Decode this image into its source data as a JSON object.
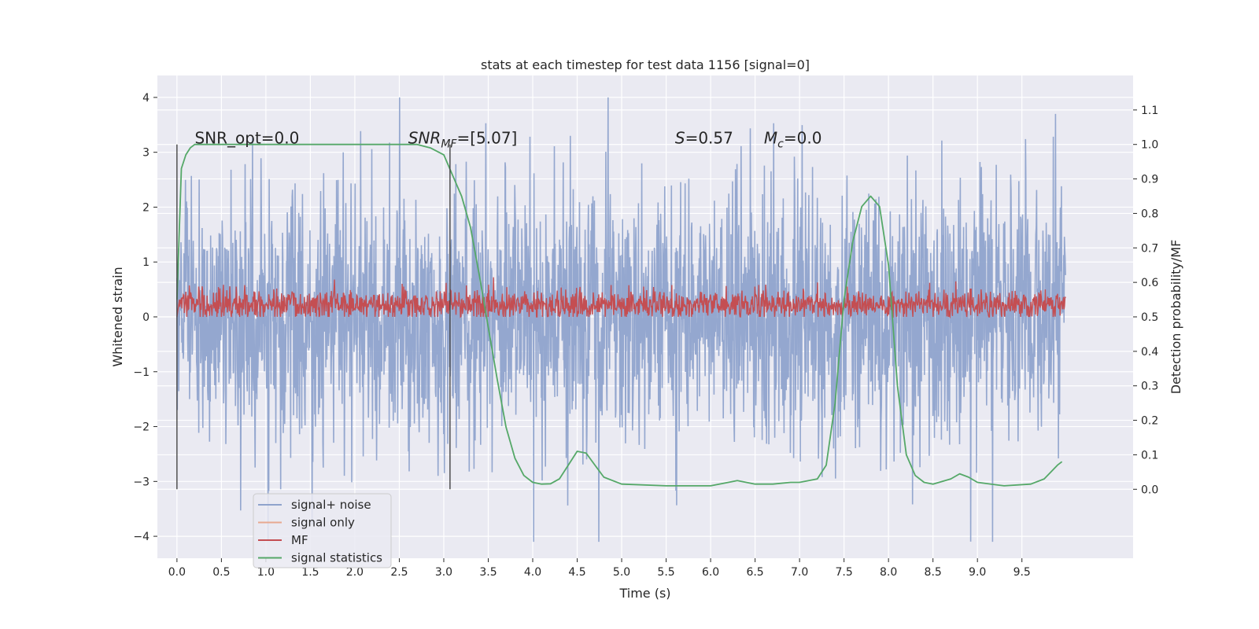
{
  "chart_data": {
    "type": "line",
    "title": "stats at each timestep for test data 1156 [signal=0]",
    "xlabel": "Time (s)",
    "ylabel": "Whitened strain",
    "y2label": "Detection probability/MF",
    "xlim": [
      -0.22,
      10.75
    ],
    "ylim": [
      -4.4,
      4.4
    ],
    "y2lim": [
      -0.2,
      1.2
    ],
    "x_ticks": [
      "0.0",
      "0.5",
      "1.0",
      "1.5",
      "2.0",
      "2.5",
      "3.0",
      "3.5",
      "4.0",
      "4.5",
      "5.0",
      "5.5",
      "6.0",
      "6.5",
      "7.0",
      "7.5",
      "8.0",
      "8.5",
      "9.0",
      "9.5"
    ],
    "x_tick_values": [
      0,
      0.5,
      1,
      1.5,
      2,
      2.5,
      3,
      3.5,
      4,
      4.5,
      5,
      5.5,
      6,
      6.5,
      7,
      7.5,
      8,
      8.5,
      9,
      9.5
    ],
    "y_ticks": [
      "4",
      "3",
      "2",
      "1",
      "0",
      "−1",
      "−2",
      "−3",
      "−4"
    ],
    "y_tick_values": [
      4,
      3,
      2,
      1,
      0,
      -1,
      -2,
      -3,
      -4
    ],
    "y2_ticks": [
      "1.1",
      "1.0",
      "0.9",
      "0.8",
      "0.7",
      "0.6",
      "0.5",
      "0.4",
      "0.3",
      "0.2",
      "0.1",
      "0.0"
    ],
    "y2_tick_values": [
      1.1,
      1.0,
      0.9,
      0.8,
      0.7,
      0.6,
      0.5,
      0.4,
      0.3,
      0.2,
      0.1,
      0.0
    ],
    "grid": true,
    "legend_position": "lower-left",
    "vlines": [
      0.0,
      3.07
    ],
    "annotations": [
      {
        "text": "SNR_opt=0.0",
        "x": 0.2,
        "y2": 1.0
      },
      {
        "text": "SNR",
        "sub": "MF",
        "rest": "=[5.07]",
        "x": 2.6,
        "y2": 1.0,
        "italic": true
      },
      {
        "text": "S",
        "rest": "=0.57",
        "x": 5.6,
        "y2": 1.0,
        "italic": true
      },
      {
        "text": "M",
        "sub": "c",
        "rest": "=0.0",
        "x": 6.6,
        "y2": 1.0,
        "italic": true
      }
    ],
    "series": [
      {
        "name": "signal+ noise",
        "color": "#8fa3cc",
        "kind": "noise",
        "x_range": [
          0,
          9.99
        ],
        "std": 1.2,
        "max": 4.0,
        "min": -4.1
      },
      {
        "name": "signal only",
        "color": "#e8a990",
        "kind": "flat",
        "values": []
      },
      {
        "name": "MF",
        "color": "#c44e52",
        "kind": "mf",
        "x_range": [
          0,
          9.99
        ],
        "y2_base": 0.535,
        "y2_min": 0.5,
        "y2_max": 0.64
      },
      {
        "name": "signal statistics",
        "color": "#55a868",
        "axis": "right",
        "x": [
          0.0,
          0.05,
          0.1,
          0.15,
          0.2,
          0.3,
          0.5,
          1.0,
          1.5,
          2.0,
          2.5,
          2.7,
          2.85,
          3.0,
          3.1,
          3.2,
          3.3,
          3.4,
          3.5,
          3.6,
          3.7,
          3.8,
          3.9,
          4.0,
          4.1,
          4.2,
          4.3,
          4.4,
          4.5,
          4.6,
          4.7,
          4.8,
          5.0,
          5.5,
          6.0,
          6.2,
          6.3,
          6.5,
          6.7,
          6.9,
          7.0,
          7.2,
          7.3,
          7.4,
          7.5,
          7.6,
          7.7,
          7.8,
          7.9,
          8.0,
          8.1,
          8.2,
          8.3,
          8.4,
          8.5,
          8.7,
          8.8,
          8.9,
          9.0,
          9.3,
          9.6,
          9.75,
          9.9,
          9.95
        ],
        "y": [
          0.55,
          0.93,
          0.97,
          0.99,
          1.0,
          1.0,
          1.0,
          1.0,
          1.0,
          1.0,
          1.0,
          1.0,
          0.99,
          0.97,
          0.91,
          0.85,
          0.76,
          0.62,
          0.47,
          0.32,
          0.18,
          0.09,
          0.04,
          0.02,
          0.015,
          0.016,
          0.03,
          0.07,
          0.11,
          0.105,
          0.07,
          0.035,
          0.015,
          0.01,
          0.01,
          0.02,
          0.025,
          0.015,
          0.015,
          0.02,
          0.02,
          0.03,
          0.07,
          0.25,
          0.55,
          0.72,
          0.82,
          0.85,
          0.82,
          0.65,
          0.3,
          0.1,
          0.04,
          0.02,
          0.015,
          0.03,
          0.045,
          0.035,
          0.02,
          0.01,
          0.015,
          0.03,
          0.07,
          0.08
        ]
      }
    ]
  }
}
